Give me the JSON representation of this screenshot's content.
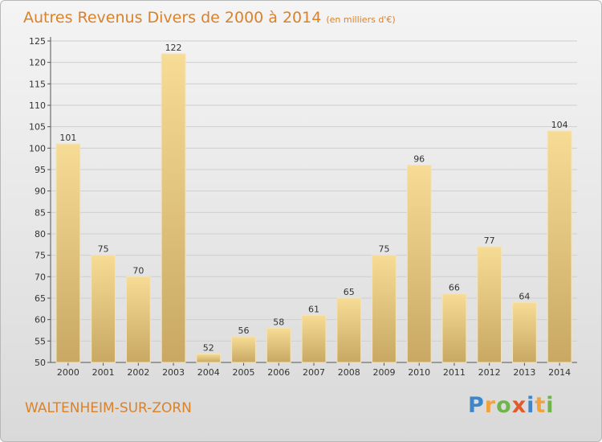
{
  "chart_data": {
    "type": "bar",
    "title": "Autres Revenus Divers de 2000 à 2014",
    "subtitle": "(en milliers d'€)",
    "categories": [
      "2000",
      "2001",
      "2002",
      "2003",
      "2004",
      "2005",
      "2006",
      "2007",
      "2008",
      "2009",
      "2010",
      "2011",
      "2012",
      "2013",
      "2014"
    ],
    "values": [
      101,
      75,
      70,
      122,
      52,
      56,
      58,
      61,
      65,
      75,
      96,
      66,
      77,
      64,
      104
    ],
    "xlabel": "",
    "ylabel": "",
    "ylim": [
      50,
      125
    ],
    "yticks": [
      50,
      55,
      60,
      65,
      70,
      75,
      80,
      85,
      90,
      95,
      100,
      105,
      110,
      115,
      120,
      125
    ],
    "grid": true,
    "legend": "none",
    "bar_color": "#e6c77e",
    "data_labels": true
  },
  "commune_name": "WALTENHEIM-SUR-ZORN",
  "logo": {
    "letters": [
      "P",
      "r",
      "o",
      "x",
      "i",
      "t",
      "i"
    ],
    "colors": [
      "#3f86c9",
      "#f2a23a",
      "#6fb54b",
      "#e25a2b",
      "#3f86c9",
      "#f2a23a",
      "#6fb54b"
    ]
  }
}
